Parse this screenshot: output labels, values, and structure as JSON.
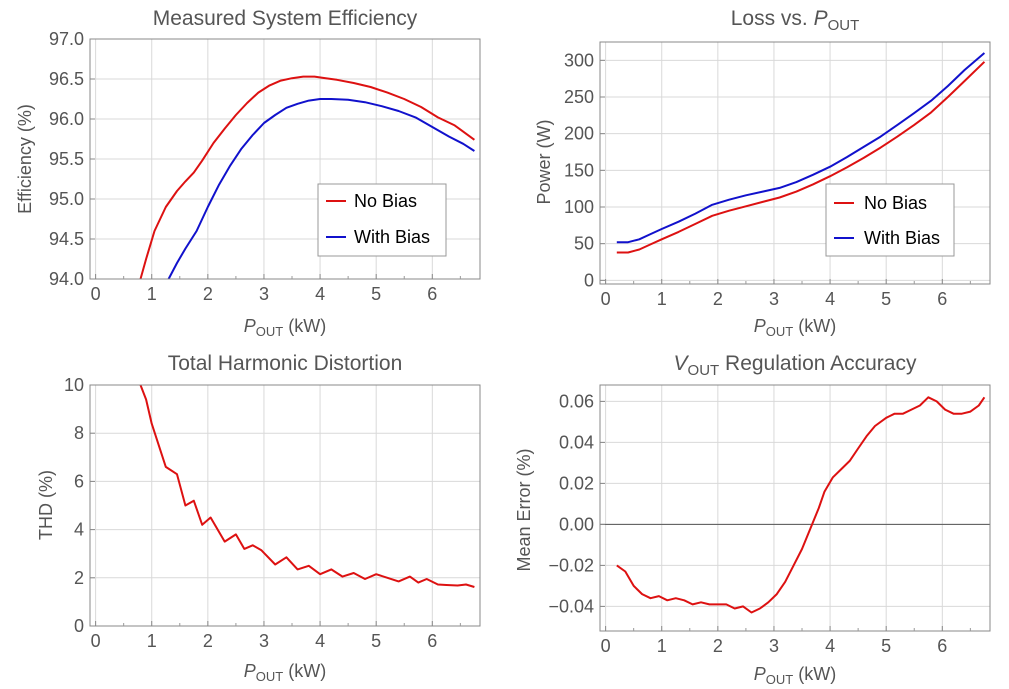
{
  "chart_data": [
    {
      "id": "efficiency",
      "type": "line",
      "title": "Measured System Efficiency",
      "xlabel": "P_OUT (kW)",
      "ylabel": "Efficiency (%)",
      "xlim": [
        -0.1,
        6.85
      ],
      "ylim": [
        94.0,
        97.0
      ],
      "xticks": [
        0,
        1,
        2,
        3,
        4,
        5,
        6
      ],
      "yticks": [
        94.0,
        94.5,
        95.0,
        95.5,
        96.0,
        96.5,
        97.0
      ],
      "ytick_labels": [
        "94.0",
        "94.5",
        "95.0",
        "95.5",
        "96.0",
        "96.5",
        "97.0"
      ],
      "grid": true,
      "legend": {
        "placement": "bottom-right"
      },
      "series": [
        {
          "name": "No Bias",
          "color": "#dd1111",
          "x": [
            0.8,
            0.9,
            1.05,
            1.25,
            1.45,
            1.6,
            1.75,
            1.9,
            2.1,
            2.3,
            2.5,
            2.7,
            2.9,
            3.1,
            3.3,
            3.5,
            3.7,
            3.9,
            4.1,
            4.3,
            4.6,
            4.9,
            5.2,
            5.5,
            5.8,
            6.1,
            6.4,
            6.75
          ],
          "y": [
            94.0,
            94.25,
            94.6,
            94.9,
            95.1,
            95.22,
            95.33,
            95.48,
            95.7,
            95.88,
            96.05,
            96.2,
            96.33,
            96.42,
            96.48,
            96.51,
            96.53,
            96.53,
            96.51,
            96.49,
            96.45,
            96.4,
            96.33,
            96.25,
            96.15,
            96.02,
            95.92,
            95.74
          ]
        },
        {
          "name": "With Bias",
          "color": "#1111cc",
          "x": [
            1.3,
            1.45,
            1.6,
            1.8,
            2.0,
            2.2,
            2.4,
            2.6,
            2.8,
            3.0,
            3.2,
            3.4,
            3.6,
            3.8,
            4.0,
            4.2,
            4.5,
            4.8,
            5.1,
            5.4,
            5.7,
            6.0,
            6.3,
            6.55,
            6.75
          ],
          "y": [
            94.0,
            94.2,
            94.38,
            94.6,
            94.9,
            95.18,
            95.42,
            95.63,
            95.8,
            95.95,
            96.05,
            96.14,
            96.19,
            96.23,
            96.25,
            96.25,
            96.24,
            96.21,
            96.16,
            96.1,
            96.02,
            95.9,
            95.78,
            95.69,
            95.6
          ]
        }
      ]
    },
    {
      "id": "loss",
      "type": "line",
      "title": "Loss vs. P_OUT",
      "xlabel": "P_OUT (kW)",
      "ylabel": "Power (W)",
      "xlim": [
        -0.1,
        6.85
      ],
      "ylim": [
        -5,
        325
      ],
      "xticks": [
        0,
        1,
        2,
        3,
        4,
        5,
        6
      ],
      "yticks": [
        0,
        50,
        100,
        150,
        200,
        250,
        300
      ],
      "ytick_labels": [
        "0",
        "50",
        "100",
        "150",
        "200",
        "250",
        "300"
      ],
      "grid": true,
      "legend": {
        "placement": "bottom-right"
      },
      "series": [
        {
          "name": "No Bias",
          "color": "#dd1111",
          "x": [
            0.2,
            0.4,
            0.6,
            0.8,
            1.0,
            1.3,
            1.6,
            1.9,
            2.2,
            2.5,
            2.8,
            3.1,
            3.4,
            3.7,
            4.0,
            4.3,
            4.6,
            4.9,
            5.2,
            5.5,
            5.8,
            6.1,
            6.4,
            6.75
          ],
          "y": [
            38,
            38,
            42,
            49,
            56,
            66,
            77,
            88,
            95,
            101,
            107,
            113,
            121,
            131,
            142,
            154,
            167,
            181,
            196,
            212,
            229,
            250,
            272,
            298
          ]
        },
        {
          "name": "With Bias",
          "color": "#1111cc",
          "x": [
            0.2,
            0.4,
            0.6,
            0.8,
            1.0,
            1.3,
            1.6,
            1.9,
            2.2,
            2.5,
            2.8,
            3.1,
            3.4,
            3.7,
            4.0,
            4.3,
            4.6,
            4.9,
            5.2,
            5.5,
            5.8,
            6.1,
            6.4,
            6.75
          ],
          "y": [
            52,
            52,
            56,
            63,
            70,
            80,
            91,
            103,
            110,
            116,
            121,
            126,
            134,
            144,
            155,
            168,
            182,
            196,
            212,
            228,
            245,
            265,
            287,
            310
          ]
        }
      ]
    },
    {
      "id": "thd",
      "type": "line",
      "title": "Total Harmonic Distortion",
      "xlabel": "P_OUT (kW)",
      "ylabel": "THD (%)",
      "xlim": [
        -0.1,
        6.85
      ],
      "ylim": [
        0,
        10
      ],
      "xticks": [
        0,
        1,
        2,
        3,
        4,
        5,
        6
      ],
      "yticks": [
        0,
        2,
        4,
        6,
        8,
        10
      ],
      "ytick_labels": [
        "0",
        "2",
        "4",
        "6",
        "8",
        "10"
      ],
      "grid": true,
      "series": [
        {
          "name": "THD",
          "color": "#dd1111",
          "x": [
            0.8,
            0.9,
            1.0,
            1.25,
            1.45,
            1.6,
            1.75,
            1.9,
            2.05,
            2.3,
            2.5,
            2.65,
            2.8,
            2.95,
            3.2,
            3.4,
            3.6,
            3.8,
            4.0,
            4.2,
            4.4,
            4.6,
            4.8,
            5.0,
            5.2,
            5.4,
            5.6,
            5.75,
            5.9,
            6.1,
            6.25,
            6.45,
            6.6,
            6.75
          ],
          "y": [
            10.0,
            9.4,
            8.4,
            6.6,
            6.3,
            5.0,
            5.2,
            4.2,
            4.5,
            3.5,
            3.8,
            3.2,
            3.35,
            3.15,
            2.55,
            2.85,
            2.35,
            2.5,
            2.15,
            2.35,
            2.05,
            2.2,
            1.95,
            2.15,
            2.0,
            1.85,
            2.05,
            1.8,
            1.95,
            1.72,
            1.7,
            1.68,
            1.72,
            1.62
          ]
        }
      ]
    },
    {
      "id": "regulation",
      "type": "line",
      "title": "V_OUT Regulation Accuracy",
      "xlabel": "P_OUT (kW)",
      "ylabel": "Mean Error (%)",
      "xlim": [
        -0.1,
        6.85
      ],
      "ylim": [
        -0.052,
        0.068
      ],
      "xticks": [
        0,
        1,
        2,
        3,
        4,
        5,
        6
      ],
      "yticks": [
        -0.04,
        -0.02,
        0.0,
        0.02,
        0.04,
        0.06
      ],
      "ytick_labels": [
        "−0.04",
        "−0.02",
        "0.00",
        "0.02",
        "0.04",
        "0.06"
      ],
      "grid": true,
      "zero_line": true,
      "series": [
        {
          "name": "Mean Error",
          "color": "#dd1111",
          "x": [
            0.2,
            0.35,
            0.5,
            0.65,
            0.8,
            0.95,
            1.1,
            1.25,
            1.4,
            1.55,
            1.7,
            1.85,
            2.0,
            2.15,
            2.3,
            2.45,
            2.6,
            2.75,
            2.9,
            3.05,
            3.2,
            3.35,
            3.5,
            3.65,
            3.8,
            3.9,
            4.05,
            4.2,
            4.35,
            4.5,
            4.65,
            4.8,
            5.0,
            5.15,
            5.3,
            5.45,
            5.6,
            5.75,
            5.9,
            6.05,
            6.2,
            6.35,
            6.5,
            6.65,
            6.75
          ],
          "y": [
            -0.02,
            -0.023,
            -0.03,
            -0.034,
            -0.036,
            -0.035,
            -0.037,
            -0.036,
            -0.037,
            -0.039,
            -0.038,
            -0.039,
            -0.039,
            -0.039,
            -0.041,
            -0.04,
            -0.043,
            -0.041,
            -0.038,
            -0.034,
            -0.028,
            -0.02,
            -0.012,
            -0.002,
            0.008,
            0.016,
            0.023,
            0.027,
            0.031,
            0.037,
            0.043,
            0.048,
            0.052,
            0.054,
            0.054,
            0.056,
            0.058,
            0.062,
            0.06,
            0.056,
            0.054,
            0.054,
            0.055,
            0.058,
            0.062
          ]
        }
      ]
    }
  ]
}
